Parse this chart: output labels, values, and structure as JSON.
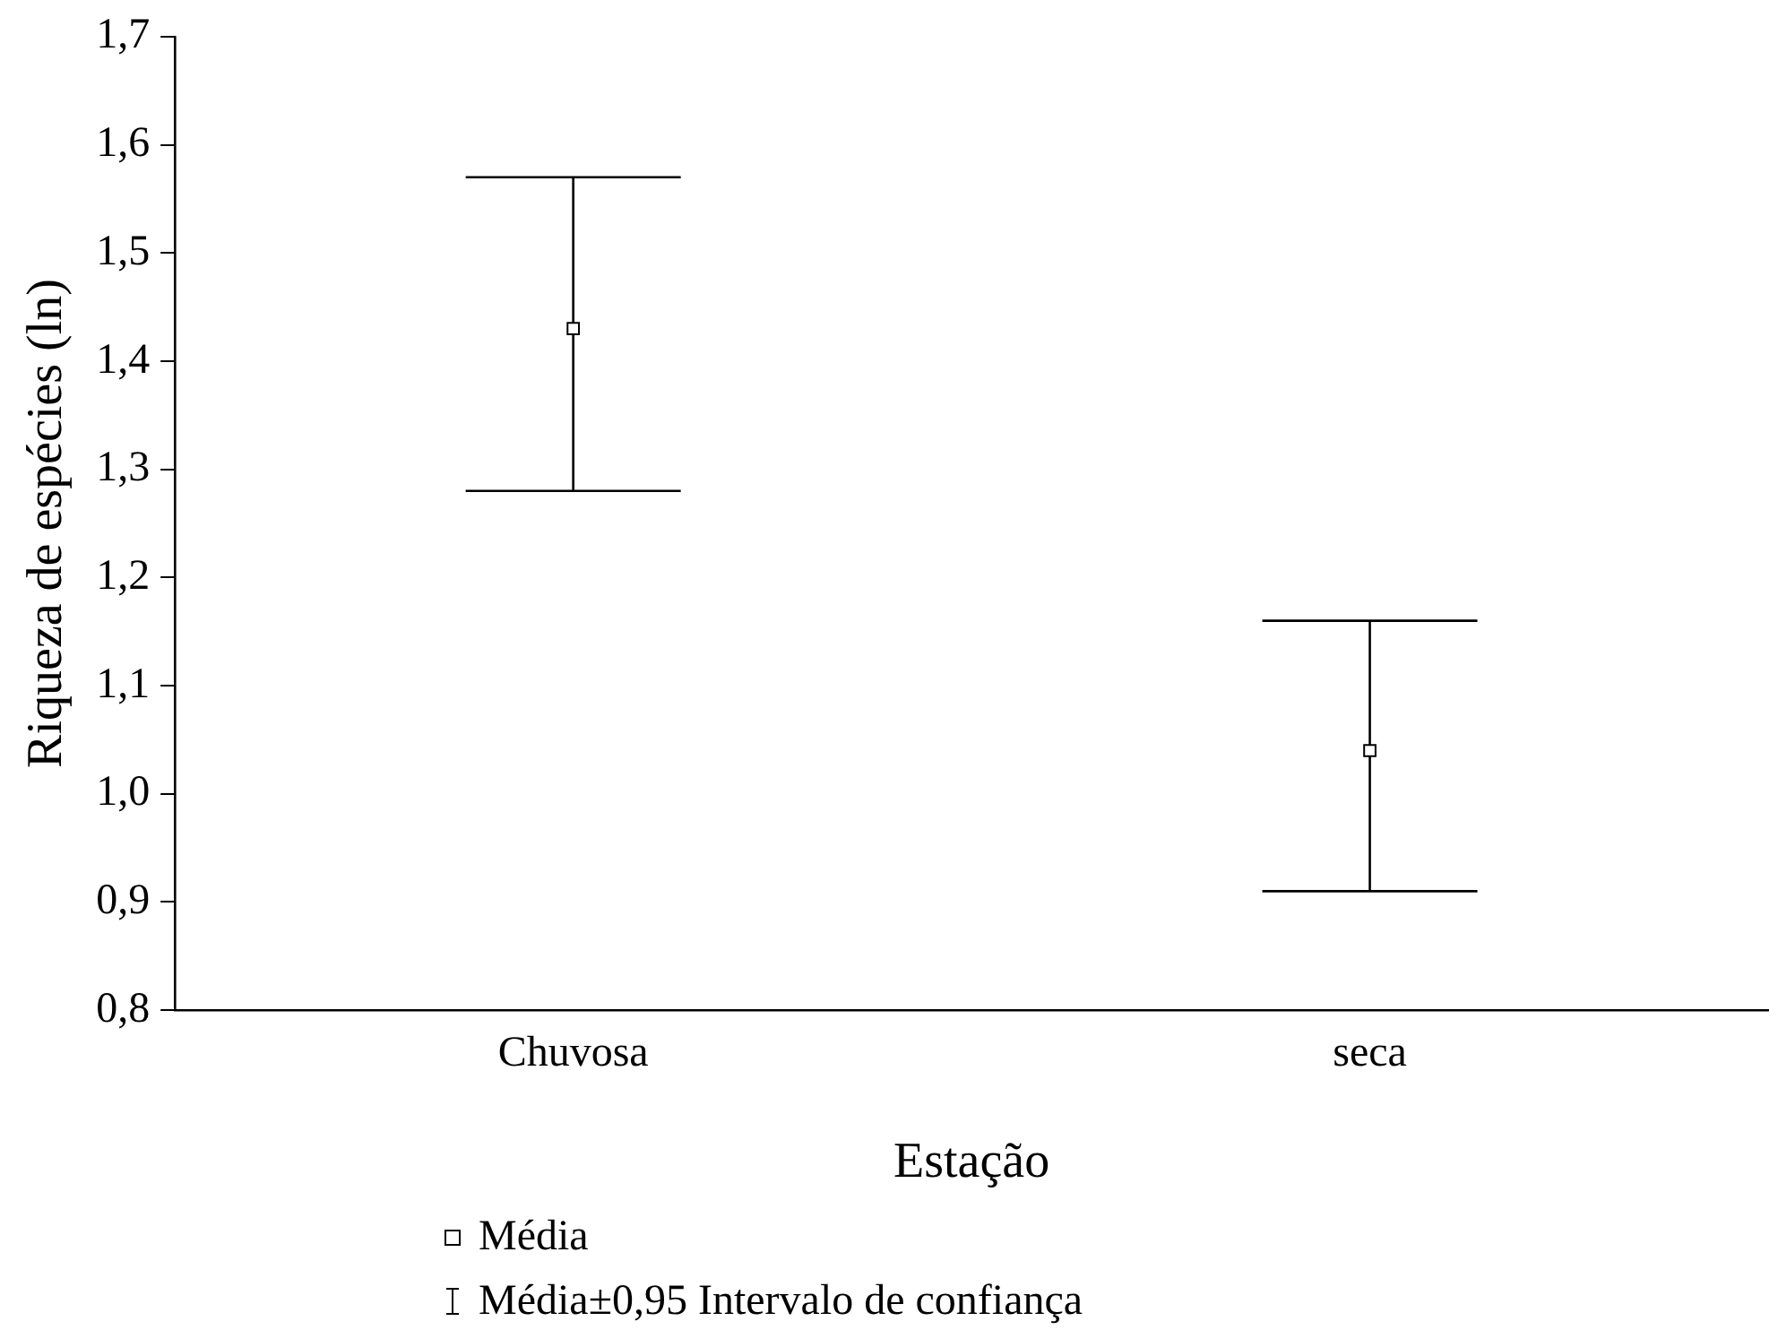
{
  "chart_data": {
    "type": "scatter",
    "xlabel": "Estação",
    "ylabel": "Riqueza de espécies (ln)",
    "categories": [
      "Chuvosa",
      "seca"
    ],
    "series": [
      {
        "name": "Média",
        "color": "#000000",
        "values": [
          1.43,
          1.04
        ],
        "errors": [
          [
            1.28,
            1.57
          ],
          [
            0.91,
            1.16
          ]
        ]
      }
    ],
    "ylim": [
      0.8,
      1.7
    ],
    "yticks": [
      {
        "value": 0.8,
        "label": "0,8"
      },
      {
        "value": 0.9,
        "label": "0,9"
      },
      {
        "value": 1.0,
        "label": "1,0"
      },
      {
        "value": 1.1,
        "label": "1,1"
      },
      {
        "value": 1.2,
        "label": "1,2"
      },
      {
        "value": 1.3,
        "label": "1,3"
      },
      {
        "value": 1.4,
        "label": "1,4"
      },
      {
        "value": 1.5,
        "label": "1,5"
      },
      {
        "value": 1.6,
        "label": "1,6"
      },
      {
        "value": 1.7,
        "label": "1,7"
      }
    ],
    "annotations": [
      "Média±0,95 Intervalo de confiança"
    ],
    "marker": "square",
    "grid": false,
    "legend": "bottom"
  }
}
